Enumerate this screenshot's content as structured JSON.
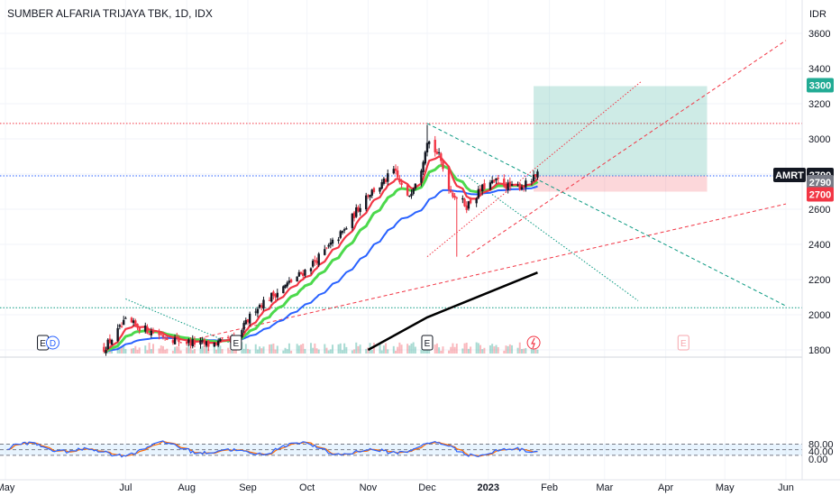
{
  "header": {
    "title": "SUMBER ALFARIA TRIJAYA TBK, 1D, IDX",
    "currency": "IDR"
  },
  "chart_data": {
    "type": "candlestick",
    "title": "SUMBER ALFARIA TRIJAYA TBK, 1D, IDX",
    "price_axis": {
      "ticks": [
        1800,
        2000,
        2200,
        2400,
        2600,
        2800,
        3000,
        3200,
        3400,
        3600
      ],
      "tick_labels": [
        "1800",
        "2000",
        "2200",
        "2400",
        "2600",
        "2800",
        "3000",
        "3200",
        "3400",
        "3600"
      ],
      "unit": "IDR"
    },
    "time_axis": {
      "labels": [
        "May",
        "Jul",
        "Aug",
        "Sep",
        "Oct",
        "Nov",
        "Dec",
        "2023",
        "Feb",
        "Mar",
        "Apr",
        "May",
        "Jun"
      ]
    },
    "price_tags": [
      {
        "label": "3300",
        "value": 3300,
        "color": "#22ab94"
      },
      {
        "label": "AMRT",
        "value": 2790,
        "color": "#131722",
        "text": "2790"
      },
      {
        "label": "",
        "value": 2790,
        "color": "#787b86",
        "text": "2790"
      },
      {
        "label": "",
        "value": 2700,
        "color": "#f23645",
        "text": "2700"
      }
    ],
    "horizontal_levels": [
      {
        "value": 3088,
        "color": "#f23645",
        "style": "dotted"
      },
      {
        "value": 2790,
        "color": "#2962ff",
        "style": "dotted"
      },
      {
        "value": 2040,
        "color": "#089981",
        "style": "dotted"
      }
    ],
    "position": {
      "entry": 2790,
      "target": 3300,
      "stop": 2700,
      "start": "2023-01-24",
      "end": "2023-04-22"
    },
    "trend_path": [
      {
        "date": "2022-06-20",
        "close": 1810
      },
      {
        "date": "2022-07-01",
        "close": 1960
      },
      {
        "date": "2022-07-15",
        "close": 1900
      },
      {
        "date": "2022-07-29",
        "close": 1850
      },
      {
        "date": "2022-08-12",
        "close": 1830
      },
      {
        "date": "2022-08-26",
        "close": 1860
      },
      {
        "date": "2022-09-05",
        "close": 2040
      },
      {
        "date": "2022-09-16",
        "close": 2130
      },
      {
        "date": "2022-09-30",
        "close": 2250
      },
      {
        "date": "2022-10-10",
        "close": 2360
      },
      {
        "date": "2022-10-20",
        "close": 2480
      },
      {
        "date": "2022-10-31",
        "close": 2680
      },
      {
        "date": "2022-11-08",
        "close": 2740
      },
      {
        "date": "2022-11-14",
        "close": 2820
      },
      {
        "date": "2022-11-21",
        "close": 2660
      },
      {
        "date": "2022-11-28",
        "close": 2840
      },
      {
        "date": "2022-12-01",
        "close": 3000
      },
      {
        "date": "2022-12-07",
        "close": 2900
      },
      {
        "date": "2022-12-13",
        "close": 2700
      },
      {
        "date": "2022-12-21",
        "close": 2620
      },
      {
        "date": "2022-12-30",
        "close": 2730
      },
      {
        "date": "2023-01-06",
        "close": 2760
      },
      {
        "date": "2023-01-13",
        "close": 2720
      },
      {
        "date": "2023-01-20",
        "close": 2740
      },
      {
        "date": "2023-01-26",
        "close": 2790
      }
    ],
    "events": [
      {
        "label": "E",
        "date": "2022-05-20"
      },
      {
        "label": "D",
        "date": "2022-05-25"
      },
      {
        "label": "E",
        "date": "2022-08-26"
      },
      {
        "label": "E",
        "date": "2022-12-01"
      },
      {
        "label": "E",
        "date": "2023-04-10",
        "future": true
      }
    ],
    "oscillator": {
      "ticks": [
        0,
        40,
        80
      ],
      "tick_labels": [
        "0.00",
        "40.00",
        "80.00"
      ],
      "band": [
        20,
        80
      ],
      "middle": 50
    }
  }
}
